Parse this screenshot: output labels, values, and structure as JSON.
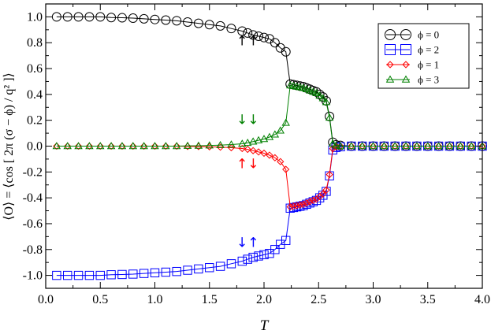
{
  "chart_data": {
    "type": "scatter",
    "xlabel": "T",
    "ylabel": "⟨O⟩ = ⟨cos [ 2π (σ − ϕ) / q² ]⟩",
    "xlim": [
      0,
      4.0
    ],
    "ylim": [
      -1.1,
      1.1
    ],
    "xticks": [
      "0.0",
      "0.5",
      "1.0",
      "1.5",
      "2.0",
      "2.5",
      "3.0",
      "3.5",
      "4.0"
    ],
    "yticks": [
      "-1.0",
      "-0.8",
      "-0.6",
      "-0.4",
      "-0.2",
      "0.0",
      "0.2",
      "0.4",
      "0.6",
      "0.8",
      "1.0"
    ],
    "grid": false,
    "legend_position": "top-right",
    "series": [
      {
        "name": "ϕ = 0",
        "color": "#000000",
        "marker": "circle",
        "x": [
          0.1,
          0.2,
          0.3,
          0.4,
          0.5,
          0.6,
          0.7,
          0.8,
          0.9,
          1.0,
          1.1,
          1.2,
          1.3,
          1.4,
          1.5,
          1.6,
          1.7,
          1.8,
          1.85,
          1.9,
          1.95,
          2.0,
          2.05,
          2.1,
          2.15,
          2.2,
          2.24,
          2.27,
          2.3,
          2.33,
          2.36,
          2.39,
          2.42,
          2.45,
          2.48,
          2.51,
          2.54,
          2.57,
          2.6,
          2.63,
          2.66,
          2.7,
          2.8,
          2.9,
          3.0,
          3.1,
          3.2,
          3.3,
          3.4,
          3.5,
          3.6,
          3.7,
          3.8,
          3.9,
          4.0
        ],
        "values": [
          1.0,
          1.0,
          1.0,
          1.0,
          1.0,
          0.995,
          0.993,
          0.99,
          0.985,
          0.98,
          0.975,
          0.97,
          0.96,
          0.95,
          0.94,
          0.93,
          0.91,
          0.89,
          0.875,
          0.86,
          0.85,
          0.84,
          0.83,
          0.8,
          0.76,
          0.73,
          0.48,
          0.475,
          0.47,
          0.465,
          0.46,
          0.45,
          0.44,
          0.43,
          0.42,
          0.4,
          0.38,
          0.35,
          0.23,
          0.03,
          0.01,
          0.005,
          0.0,
          0.0,
          0.0,
          0.0,
          0.0,
          0.0,
          0.0,
          0.0,
          0.0,
          0.0,
          0.0,
          0.0,
          0.0
        ]
      },
      {
        "name": "ϕ = 2",
        "color": "#0000ff",
        "marker": "square",
        "x": [
          0.1,
          0.2,
          0.3,
          0.4,
          0.5,
          0.6,
          0.7,
          0.8,
          0.9,
          1.0,
          1.1,
          1.2,
          1.3,
          1.4,
          1.5,
          1.6,
          1.7,
          1.8,
          1.85,
          1.9,
          1.95,
          2.0,
          2.05,
          2.1,
          2.15,
          2.2,
          2.24,
          2.27,
          2.3,
          2.33,
          2.36,
          2.39,
          2.42,
          2.45,
          2.48,
          2.51,
          2.54,
          2.57,
          2.6,
          2.63,
          2.66,
          2.7,
          2.8,
          2.9,
          3.0,
          3.1,
          3.2,
          3.3,
          3.4,
          3.5,
          3.6,
          3.7,
          3.8,
          3.9,
          4.0
        ],
        "values": [
          -1.0,
          -1.0,
          -1.0,
          -1.0,
          -1.0,
          -0.995,
          -0.993,
          -0.99,
          -0.985,
          -0.98,
          -0.975,
          -0.97,
          -0.96,
          -0.95,
          -0.94,
          -0.93,
          -0.91,
          -0.89,
          -0.875,
          -0.86,
          -0.85,
          -0.84,
          -0.83,
          -0.8,
          -0.76,
          -0.73,
          -0.48,
          -0.475,
          -0.47,
          -0.465,
          -0.46,
          -0.45,
          -0.44,
          -0.43,
          -0.42,
          -0.4,
          -0.38,
          -0.35,
          -0.23,
          -0.03,
          -0.01,
          -0.005,
          0.0,
          0.0,
          0.0,
          0.0,
          0.0,
          0.0,
          0.0,
          0.0,
          0.0,
          0.0,
          0.0,
          0.0,
          0.0
        ]
      },
      {
        "name": "ϕ = 1",
        "color": "#ff0000",
        "marker": "diamond",
        "x": [
          0.1,
          0.2,
          0.3,
          0.4,
          0.5,
          0.6,
          0.7,
          0.8,
          0.9,
          1.0,
          1.1,
          1.2,
          1.3,
          1.4,
          1.5,
          1.6,
          1.7,
          1.8,
          1.85,
          1.9,
          1.95,
          2.0,
          2.05,
          2.1,
          2.15,
          2.2,
          2.24,
          2.27,
          2.3,
          2.33,
          2.36,
          2.39,
          2.42,
          2.45,
          2.48,
          2.51,
          2.54,
          2.57,
          2.6,
          2.63,
          2.66,
          2.7,
          2.8,
          2.9,
          3.0,
          3.1,
          3.2,
          3.3,
          3.4,
          3.5,
          3.6,
          3.7,
          3.8,
          3.9,
          4.0
        ],
        "values": [
          0.0,
          0.0,
          0.0,
          0.0,
          0.0,
          0.0,
          0.0,
          0.0,
          0.0,
          0.0,
          0.0,
          0.0,
          -0.002,
          -0.003,
          -0.005,
          -0.008,
          -0.012,
          -0.018,
          -0.025,
          -0.035,
          -0.045,
          -0.055,
          -0.07,
          -0.09,
          -0.12,
          -0.18,
          -0.47,
          -0.465,
          -0.46,
          -0.455,
          -0.45,
          -0.44,
          -0.43,
          -0.42,
          -0.41,
          -0.39,
          -0.37,
          -0.34,
          -0.22,
          -0.02,
          -0.005,
          0.0,
          0.0,
          0.0,
          0.0,
          0.0,
          0.0,
          0.0,
          0.0,
          0.0,
          0.0,
          0.0,
          0.0,
          0.0,
          0.0
        ]
      },
      {
        "name": "ϕ = 3",
        "color": "#008000",
        "marker": "triangle",
        "x": [
          0.1,
          0.2,
          0.3,
          0.4,
          0.5,
          0.6,
          0.7,
          0.8,
          0.9,
          1.0,
          1.1,
          1.2,
          1.3,
          1.4,
          1.5,
          1.6,
          1.7,
          1.8,
          1.85,
          1.9,
          1.95,
          2.0,
          2.05,
          2.1,
          2.15,
          2.2,
          2.24,
          2.27,
          2.3,
          2.33,
          2.36,
          2.39,
          2.42,
          2.45,
          2.48,
          2.51,
          2.54,
          2.57,
          2.6,
          2.63,
          2.66,
          2.7,
          2.8,
          2.9,
          3.0,
          3.1,
          3.2,
          3.3,
          3.4,
          3.5,
          3.6,
          3.7,
          3.8,
          3.9,
          4.0
        ],
        "values": [
          0.0,
          0.0,
          0.0,
          0.0,
          0.0,
          0.0,
          0.0,
          0.0,
          0.0,
          0.0,
          0.0,
          0.0,
          0.002,
          0.003,
          0.005,
          0.008,
          0.012,
          0.018,
          0.025,
          0.035,
          0.045,
          0.055,
          0.07,
          0.09,
          0.12,
          0.18,
          0.47,
          0.465,
          0.46,
          0.455,
          0.45,
          0.44,
          0.43,
          0.42,
          0.41,
          0.39,
          0.37,
          0.34,
          0.22,
          0.02,
          0.005,
          0.0,
          0.0,
          0.0,
          0.0,
          0.0,
          0.0,
          0.0,
          0.0,
          0.0,
          0.0,
          0.0,
          0.0,
          0.0,
          0.0
        ]
      }
    ],
    "annotations": [
      {
        "text": "↑↑",
        "x": 1.85,
        "y": 0.78,
        "color": "#000000"
      },
      {
        "text": "↓↓",
        "x": 1.85,
        "y": 0.17,
        "color": "#008000"
      },
      {
        "text": "↑↓",
        "x": 1.85,
        "y": -0.17,
        "color": "#ff0000"
      },
      {
        "text": "↓↑",
        "x": 1.85,
        "y": -0.78,
        "color": "#0000ff"
      }
    ],
    "legend_order": [
      0,
      1,
      2,
      3
    ]
  }
}
